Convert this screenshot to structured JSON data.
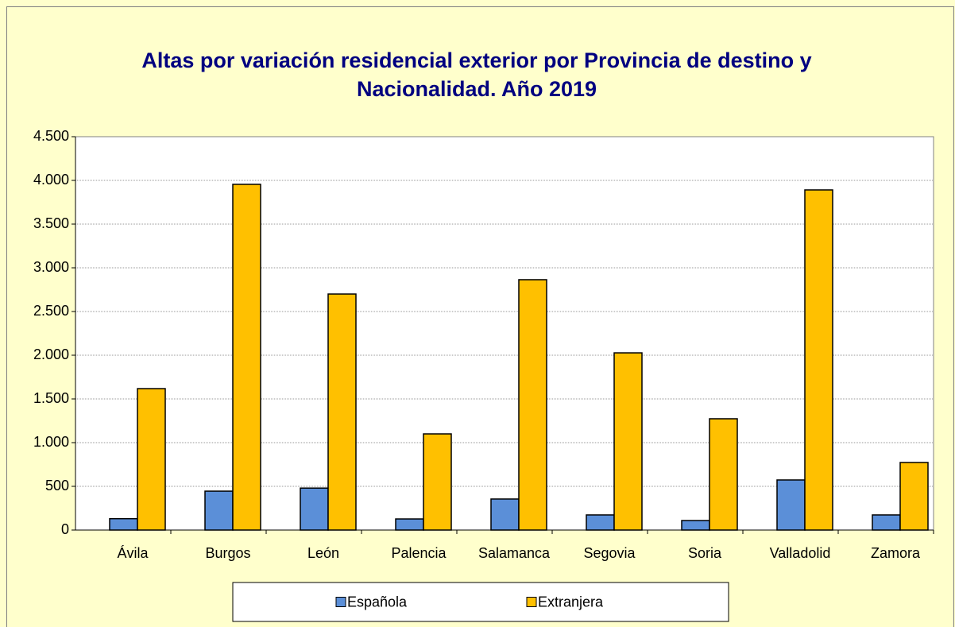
{
  "chart_data": {
    "type": "bar",
    "title": "Altas por variación residencial exterior por Provincia de destino y Nacionalidad. Año 2019",
    "categories": [
      "Ávila",
      "Burgos",
      "León",
      "Palencia",
      "Salamanca",
      "Segovia",
      "Soria",
      "Valladolid",
      "Zamora"
    ],
    "series": [
      {
        "name": "Española",
        "color": "#5b8fd8",
        "values": [
          130,
          445,
          480,
          127,
          355,
          173,
          109,
          573,
          173
        ]
      },
      {
        "name": "Extranjera",
        "color": "#ffc000",
        "values": [
          1618,
          3955,
          2700,
          1100,
          2864,
          2027,
          1273,
          3891,
          773
        ]
      }
    ],
    "ylim": [
      0,
      4500
    ],
    "yticks": [
      0,
      500,
      {
        "value": 1000,
        "label": "1.000"
      },
      {
        "value": 1500,
        "label": "1.500"
      },
      {
        "value": 2000,
        "label": "2.000"
      },
      {
        "value": 2500,
        "label": "2.500"
      },
      {
        "value": 3000,
        "label": "3.000"
      },
      {
        "value": 3500,
        "label": "3.500"
      },
      {
        "value": 4000,
        "label": "4.000"
      },
      {
        "value": 4500,
        "label": "4.500"
      }
    ],
    "grid": true,
    "legend": "bottom"
  }
}
